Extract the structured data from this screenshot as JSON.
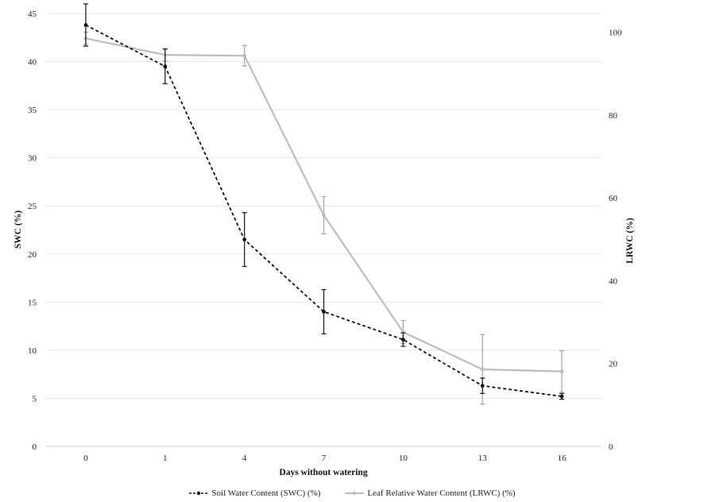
{
  "chart_data": {
    "type": "line",
    "title": "",
    "xlabel": "Days without watering",
    "ylabel": "SWC (%)",
    "y2label": "LRWC (%)",
    "categories": [
      "0",
      "1",
      "4",
      "7",
      "10",
      "13",
      "16"
    ],
    "ylim": [
      0,
      45
    ],
    "yticks": [
      0,
      5,
      10,
      15,
      20,
      25,
      30,
      35,
      40,
      45
    ],
    "y2lim": [
      0,
      104.5
    ],
    "y2ticks": [
      0,
      20,
      40,
      60,
      80,
      100
    ],
    "grid": true,
    "legend_position": "bottom",
    "series": [
      {
        "name": "Soil Water Content (SWC) (%)",
        "axis": "left",
        "style": "dashed",
        "color": "#111111",
        "values": [
          43.8,
          39.5,
          21.5,
          14.0,
          11.1,
          6.3,
          5.2
        ],
        "error": [
          2.2,
          1.8,
          2.8,
          2.3,
          0.7,
          0.8,
          0.3
        ]
      },
      {
        "name": "Leaf Relative Water Content (LRWC) (%)",
        "axis": "right",
        "style": "solid",
        "color": "#bdbdbd",
        "values": [
          98.5,
          94.5,
          94.3,
          55.8,
          27.6,
          18.6,
          18.1
        ],
        "error": [
          1.5,
          1.5,
          2.5,
          4.5,
          2.8,
          8.4,
          5.0
        ]
      }
    ]
  }
}
